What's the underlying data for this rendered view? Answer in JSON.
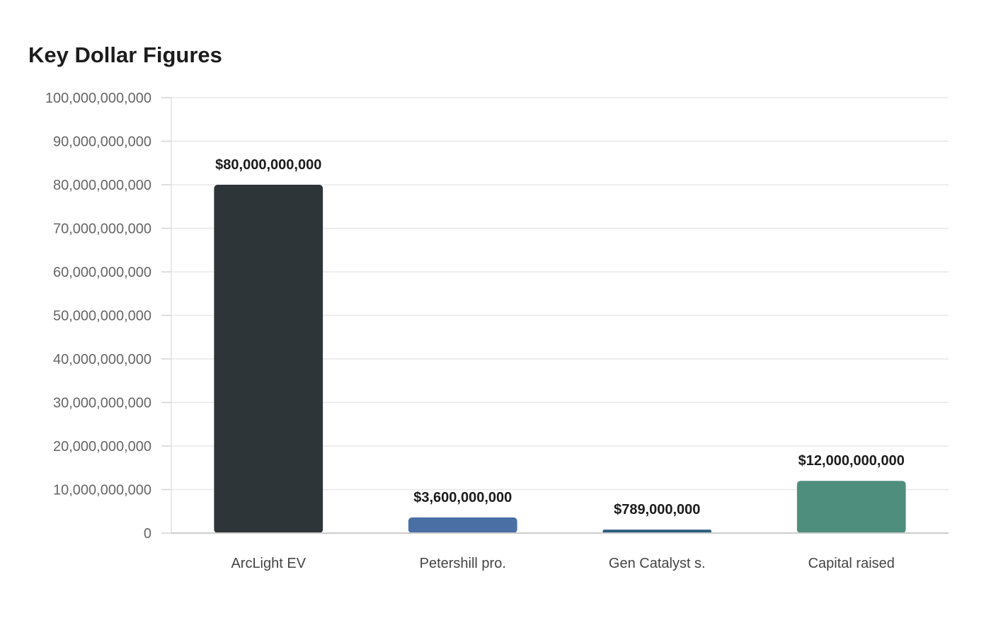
{
  "chart_data": {
    "type": "bar",
    "title": "Key Dollar Figures",
    "xlabel": "",
    "ylabel": "",
    "categories": [
      "ArcLight EV",
      "Petershill pro.",
      "Gen Catalyst s.",
      "Capital raised"
    ],
    "values": [
      80000000000,
      3600000000,
      789000000,
      12000000000
    ],
    "value_labels": [
      "$80,000,000,000",
      "$3,600,000,000",
      "$789,000,000",
      "$12,000,000,000"
    ],
    "bar_colors": [
      "#2e3538",
      "#4a6fa5",
      "#2b5f7f",
      "#4e8e7c"
    ],
    "ylim": [
      0,
      100000000000
    ],
    "yticks": [
      0,
      10000000000,
      20000000000,
      30000000000,
      40000000000,
      50000000000,
      60000000000,
      70000000000,
      80000000000,
      90000000000,
      100000000000
    ],
    "ytick_labels": [
      "0",
      "10,000,000,000",
      "20,000,000,000",
      "30,000,000,000",
      "40,000,000,000",
      "50,000,000,000",
      "60,000,000,000",
      "70,000,000,000",
      "80,000,000,000",
      "90,000,000,000",
      "100,000,000,000"
    ],
    "grid": true,
    "legend": "none"
  }
}
